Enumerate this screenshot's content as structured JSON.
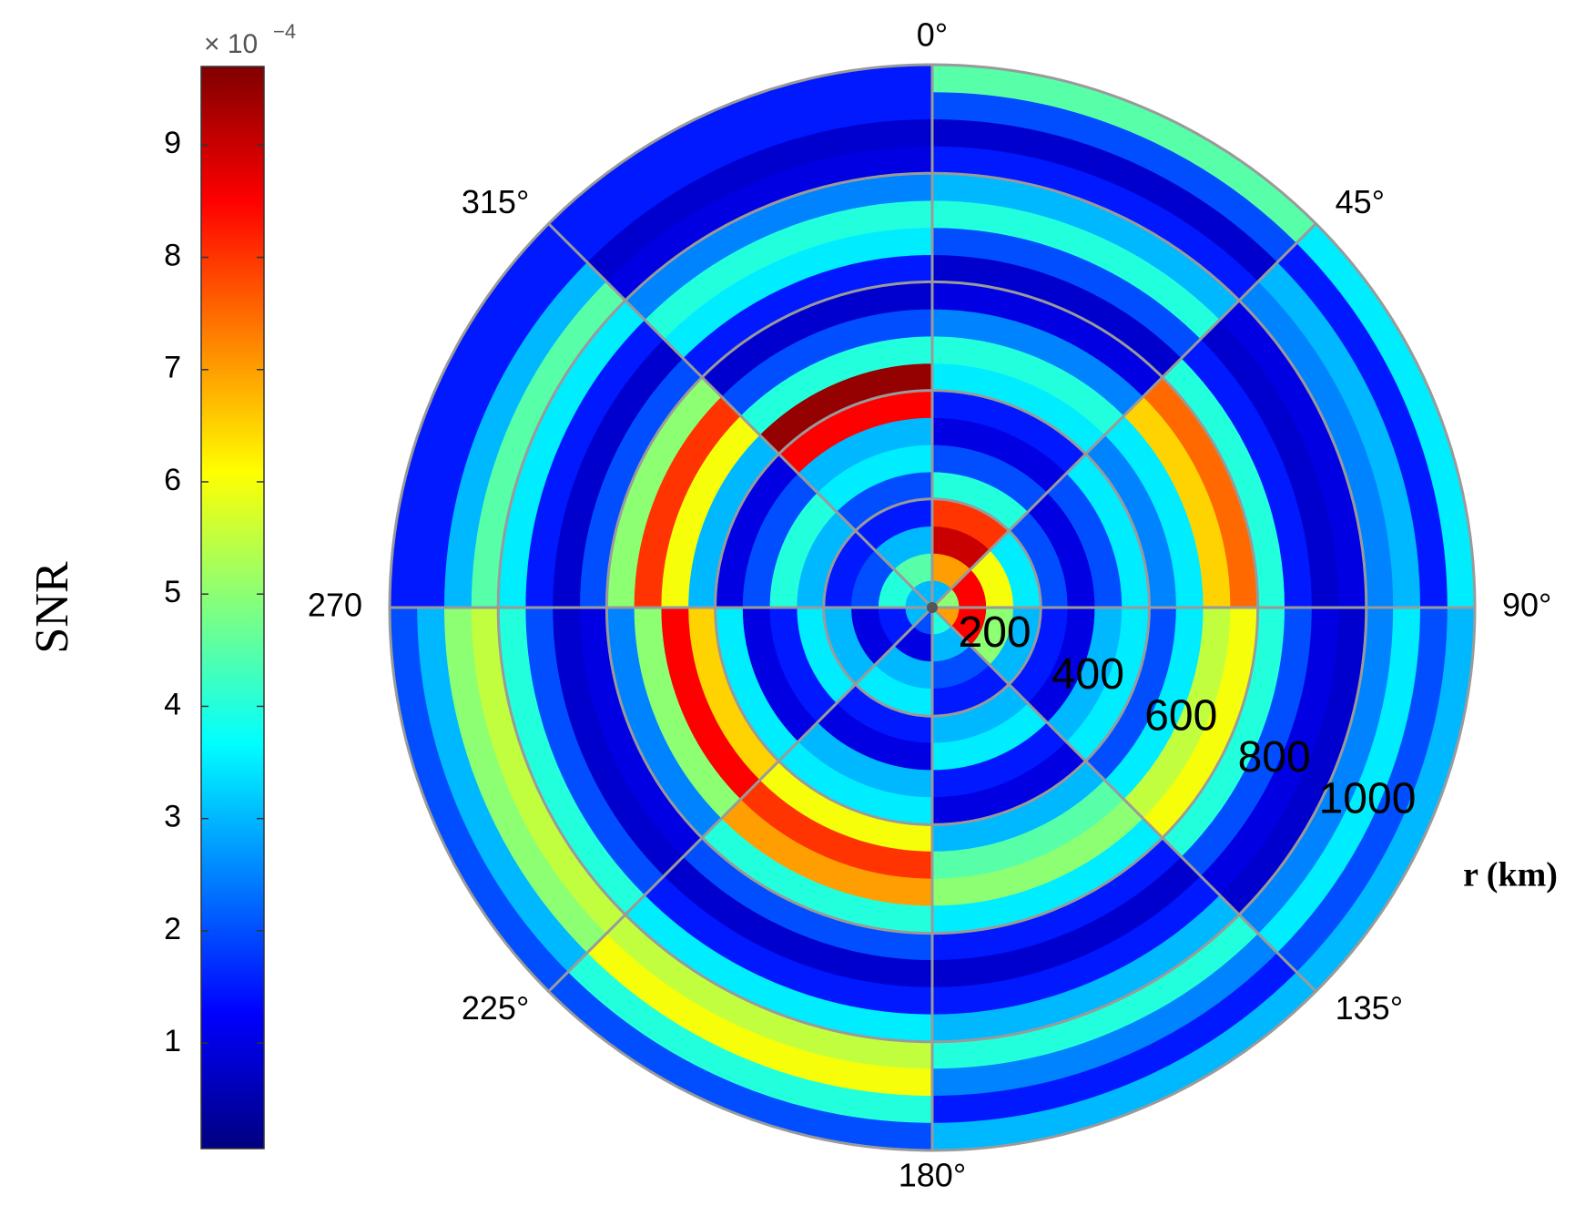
{
  "chart_data": {
    "type": "polar_heatmap",
    "colorbar_label": "SNR",
    "colorbar_multiplier": "× 10",
    "colorbar_exponent": "−4",
    "r_label": "r (km)",
    "colormap": "jet",
    "clim": [
      0.06,
      9.7
    ],
    "cticks": [
      1,
      2,
      3,
      4,
      5,
      6,
      7,
      8,
      9
    ],
    "theta_zero": "top",
    "theta_direction": "clockwise",
    "theta_ticks": [
      {
        "value": 0,
        "label": "0°"
      },
      {
        "value": 45,
        "label": "45°"
      },
      {
        "value": 90,
        "label": "90°"
      },
      {
        "value": 135,
        "label": "135°"
      },
      {
        "value": 180,
        "label": "180°"
      },
      {
        "value": 225,
        "label": "225°"
      },
      {
        "value": 270,
        "label": "270"
      },
      {
        "value": 315,
        "label": "315°"
      }
    ],
    "rlim": [
      0,
      1000
    ],
    "r_ticks": [
      200,
      400,
      600,
      800,
      1000
    ],
    "grid": true,
    "theta_bins": [
      0,
      45,
      90,
      135,
      180,
      225,
      270,
      315,
      360
    ],
    "r_bins": [
      0,
      50,
      100,
      150,
      200,
      250,
      300,
      350,
      400,
      450,
      500,
      550,
      600,
      650,
      700,
      750,
      800,
      850,
      900,
      950,
      1000
    ],
    "values": [
      [
        3,
        7,
        9,
        8,
        4,
        2,
        1,
        1.5,
        3.5,
        4,
        2.5,
        1,
        0.8,
        2,
        4,
        3,
        1.5,
        0.8,
        2,
        4.5
      ],
      [
        5,
        8.5,
        6,
        3.5,
        2,
        1,
        2,
        3.5,
        2.5,
        3.5,
        6.5,
        7.5,
        4,
        1.5,
        0.8,
        1,
        2.5,
        3,
        1.5,
        3.5
      ],
      [
        7,
        8.5,
        5,
        3,
        1.5,
        1,
        3,
        3.5,
        2,
        3.5,
        5.5,
        6,
        4,
        2,
        1,
        0.8,
        2.5,
        3.5,
        2,
        3
      ],
      [
        4,
        3,
        2,
        1.5,
        3,
        3.5,
        1.5,
        1,
        3,
        4.5,
        5,
        3.5,
        1.5,
        0.8,
        1.5,
        3,
        4,
        2.5,
        1.5,
        3
      ],
      [
        2,
        1,
        3,
        3.5,
        1.5,
        1,
        3,
        3.5,
        6,
        8,
        7,
        4,
        2,
        0.8,
        1.5,
        3.5,
        5.5,
        6,
        4,
        2
      ],
      [
        3,
        1.5,
        1,
        3,
        3.5,
        1.5,
        1,
        3.5,
        6.5,
        8.5,
        5,
        2.5,
        1,
        0.8,
        2,
        4,
        5.5,
        5,
        3,
        2
      ],
      [
        3,
        4,
        2,
        1.5,
        3,
        4,
        2,
        1,
        3,
        6,
        8,
        5,
        2,
        0.8,
        1.5,
        3.5,
        4.5,
        3,
        1.5,
        1.5
      ],
      [
        3,
        4.5,
        3,
        1.5,
        2,
        3.5,
        3,
        8.5,
        9.5,
        4,
        2,
        0.8,
        1.5,
        3.5,
        4,
        2.5,
        1,
        0.8,
        1.5,
        1.5
      ]
    ]
  }
}
